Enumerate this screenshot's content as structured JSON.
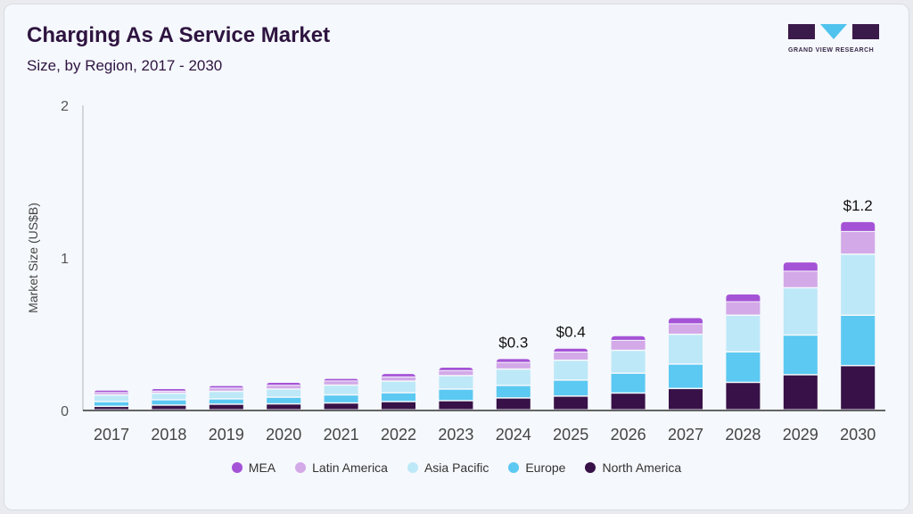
{
  "header": {
    "title": "Charging As A Service Market",
    "subtitle": "Size, by Region, 2017 - 2030"
  },
  "logo": {
    "text": "GRAND VIEW RESEARCH"
  },
  "chart_data": {
    "type": "bar",
    "stacked": true,
    "title": "Charging As A Service Market",
    "subtitle": "Size, by Region, 2017 - 2030",
    "xlabel": "",
    "ylabel": "Market Size (US$B)",
    "ylim": [
      0,
      2
    ],
    "yticks": [
      "0",
      "1",
      "2"
    ],
    "categories": [
      "2017",
      "2018",
      "2019",
      "2020",
      "2021",
      "2022",
      "2023",
      "2024",
      "2025",
      "2026",
      "2027",
      "2028",
      "2029",
      "2030"
    ],
    "series": [
      {
        "name": "North America",
        "color": "#371147",
        "values": [
          0.023,
          0.031,
          0.037,
          0.039,
          0.045,
          0.054,
          0.06,
          0.078,
          0.09,
          0.11,
          0.14,
          0.18,
          0.23,
          0.29
        ]
      },
      {
        "name": "Europe",
        "color": "#5bc9f2",
        "values": [
          0.031,
          0.035,
          0.035,
          0.044,
          0.053,
          0.058,
          0.076,
          0.082,
          0.105,
          0.13,
          0.16,
          0.2,
          0.26,
          0.33
        ]
      },
      {
        "name": "Asia Pacific",
        "color": "#bde8f8",
        "values": [
          0.043,
          0.043,
          0.049,
          0.053,
          0.064,
          0.076,
          0.088,
          0.107,
          0.13,
          0.15,
          0.195,
          0.24,
          0.31,
          0.4
        ]
      },
      {
        "name": "Latin America",
        "color": "#d3a9e8",
        "values": [
          0.018,
          0.015,
          0.023,
          0.026,
          0.029,
          0.029,
          0.035,
          0.045,
          0.055,
          0.067,
          0.07,
          0.09,
          0.11,
          0.15
        ]
      },
      {
        "name": "MEA",
        "color": "#a553d6",
        "values": [
          0.015,
          0.016,
          0.016,
          0.019,
          0.016,
          0.022,
          0.022,
          0.025,
          0.025,
          0.03,
          0.04,
          0.05,
          0.06,
          0.065
        ]
      }
    ],
    "annotations": [
      {
        "category": "2024",
        "label": "$0.3"
      },
      {
        "category": "2025",
        "label": "$0.4"
      },
      {
        "category": "2030",
        "label": "$1.2"
      }
    ],
    "legend_order": [
      "MEA",
      "Latin America",
      "Asia Pacific",
      "Europe",
      "North America"
    ],
    "legend_position": "bottom",
    "grid": false
  }
}
